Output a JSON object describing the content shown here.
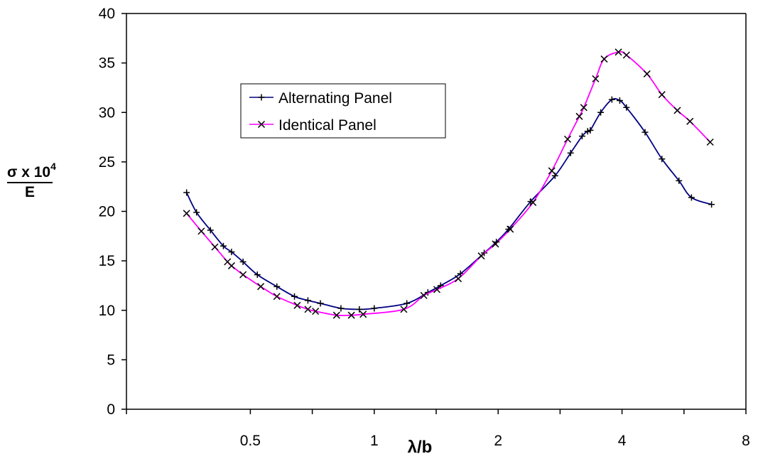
{
  "chart_data": {
    "type": "line",
    "xscale": "log2",
    "xlim": [
      0.25,
      8
    ],
    "ylim": [
      0,
      40
    ],
    "x_ticks": [
      {
        "value": 0.5,
        "label": "0.5"
      },
      {
        "value": 1,
        "label": "1"
      },
      {
        "value": 2,
        "label": "2"
      },
      {
        "value": 4,
        "label": "4"
      },
      {
        "value": 8,
        "label": "8"
      }
    ],
    "y_ticks": [
      {
        "value": 0,
        "label": "0"
      },
      {
        "value": 5,
        "label": "5"
      },
      {
        "value": 10,
        "label": "10"
      },
      {
        "value": 15,
        "label": "15"
      },
      {
        "value": 20,
        "label": "20"
      },
      {
        "value": 25,
        "label": "25"
      },
      {
        "value": 30,
        "label": "30"
      },
      {
        "value": 35,
        "label": "35"
      },
      {
        "value": 40,
        "label": "40"
      }
    ],
    "xlabel": "λ/b",
    "ylabel": {
      "numerator": "σ x 10",
      "exponent": "4",
      "denominator": "E"
    },
    "grid": false,
    "legend": "inside-top-center",
    "series": [
      {
        "name": "Alternating Panel",
        "color": "#000080",
        "marker": "plus",
        "x": [
          0.35,
          0.37,
          0.4,
          0.43,
          0.45,
          0.48,
          0.52,
          0.58,
          0.64,
          0.69,
          0.74,
          0.83,
          0.92,
          1.0,
          1.2,
          1.35,
          1.45,
          1.62,
          1.85,
          1.98,
          2.12,
          2.4,
          2.75,
          3.0,
          3.2,
          3.3,
          3.35,
          3.55,
          3.78,
          3.95,
          4.1,
          4.55,
          5.0,
          5.5,
          5.9,
          6.6
        ],
        "y": [
          21.9,
          19.9,
          18.1,
          16.5,
          15.9,
          14.9,
          13.6,
          12.4,
          11.4,
          11.0,
          10.7,
          10.2,
          10.1,
          10.2,
          10.7,
          11.8,
          12.5,
          13.7,
          15.8,
          16.9,
          18.2,
          21.0,
          23.6,
          25.9,
          27.6,
          28.1,
          28.2,
          30.0,
          31.3,
          31.2,
          30.5,
          28.0,
          25.3,
          23.1,
          21.4,
          20.7
        ]
      },
      {
        "name": "Identical Panel",
        "color": "#ff00ff",
        "marker": "x",
        "x": [
          0.35,
          0.38,
          0.41,
          0.44,
          0.45,
          0.48,
          0.53,
          0.58,
          0.65,
          0.69,
          0.72,
          0.81,
          0.88,
          0.94,
          1.18,
          1.32,
          1.42,
          1.6,
          1.82,
          1.97,
          2.14,
          2.43,
          2.7,
          2.95,
          3.15,
          3.23,
          3.45,
          3.62,
          3.92,
          4.1,
          4.6,
          5.0,
          5.45,
          5.85,
          6.55
        ],
        "y": [
          19.8,
          18.0,
          16.4,
          14.9,
          14.5,
          13.6,
          12.4,
          11.4,
          10.5,
          10.1,
          9.9,
          9.5,
          9.5,
          9.6,
          10.1,
          11.5,
          12.1,
          13.2,
          15.5,
          16.7,
          18.2,
          20.9,
          24.1,
          27.3,
          29.6,
          30.5,
          33.4,
          35.4,
          36.1,
          35.8,
          33.9,
          31.8,
          30.2,
          29.1,
          27.0
        ]
      }
    ]
  }
}
